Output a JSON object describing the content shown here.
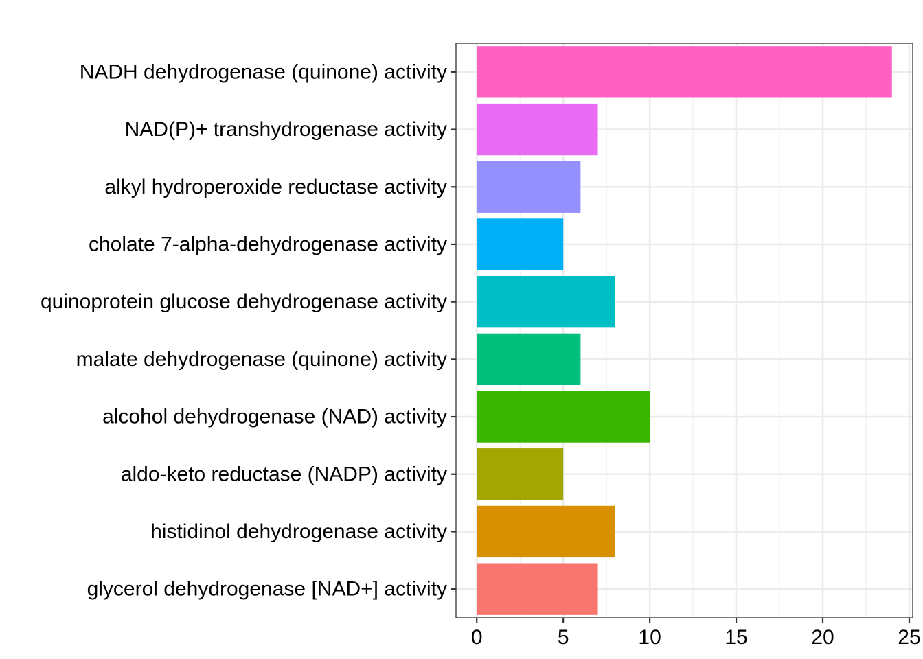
{
  "chart_data": {
    "type": "bar",
    "orientation": "horizontal",
    "title": "",
    "xlabel": "",
    "ylabel": "",
    "categories": [
      "NADH dehydrogenase (quinone) activity",
      "NAD(P)+ transhydrogenase activity",
      "alkyl hydroperoxide reductase activity",
      "cholate 7-alpha-dehydrogenase activity",
      "quinoprotein glucose dehydrogenase activity",
      "malate dehydrogenase (quinone) activity",
      "alcohol dehydrogenase (NAD) activity",
      "aldo-keto reductase (NADP) activity",
      "histidinol dehydrogenase activity",
      "glycerol dehydrogenase [NAD+] activity"
    ],
    "values": [
      24,
      7,
      6,
      5,
      8,
      6,
      10,
      5,
      8,
      7
    ],
    "colors": [
      "#FF61C3",
      "#E76BF3",
      "#9590FF",
      "#00B0F6",
      "#00BFC4",
      "#00BF7D",
      "#39B600",
      "#A3A500",
      "#D89000",
      "#F8766D"
    ],
    "xlim": [
      -1.2,
      25.2
    ],
    "xticks": [
      0,
      5,
      10,
      15,
      20,
      25
    ],
    "grid": true,
    "legend": "none"
  }
}
